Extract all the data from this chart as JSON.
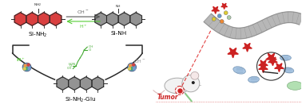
{
  "background_color": "#ffffff",
  "fig_width": 3.78,
  "fig_height": 1.36,
  "dpi": 100,
  "si_nh2_label": "Si-NH$_2$",
  "si_nh_label": "Si-NH",
  "si_nh2_glu_label": "Si-NH$_2$-Glu",
  "tumor_label": "Tumor",
  "oh_minus_label": "OH$^-$",
  "h_plus_label": "H$^+$",
  "red_dye_color": "#d63030",
  "gray_dye_color": "#8a8a8a",
  "hexagon_edge_color": "#2a2a2a",
  "arrow_color": "#555555",
  "h_plus_color": "#55cc33",
  "oh_minus_color": "#999999",
  "tumor_label_color": "#cc2222",
  "tumor_dot_color": "#cc2222",
  "star_color": "#cc2222",
  "cell_membrane_color": "#999999",
  "label_fontsize": 5.2,
  "small_fontsize": 4.5,
  "tiny_fontsize": 3.8
}
